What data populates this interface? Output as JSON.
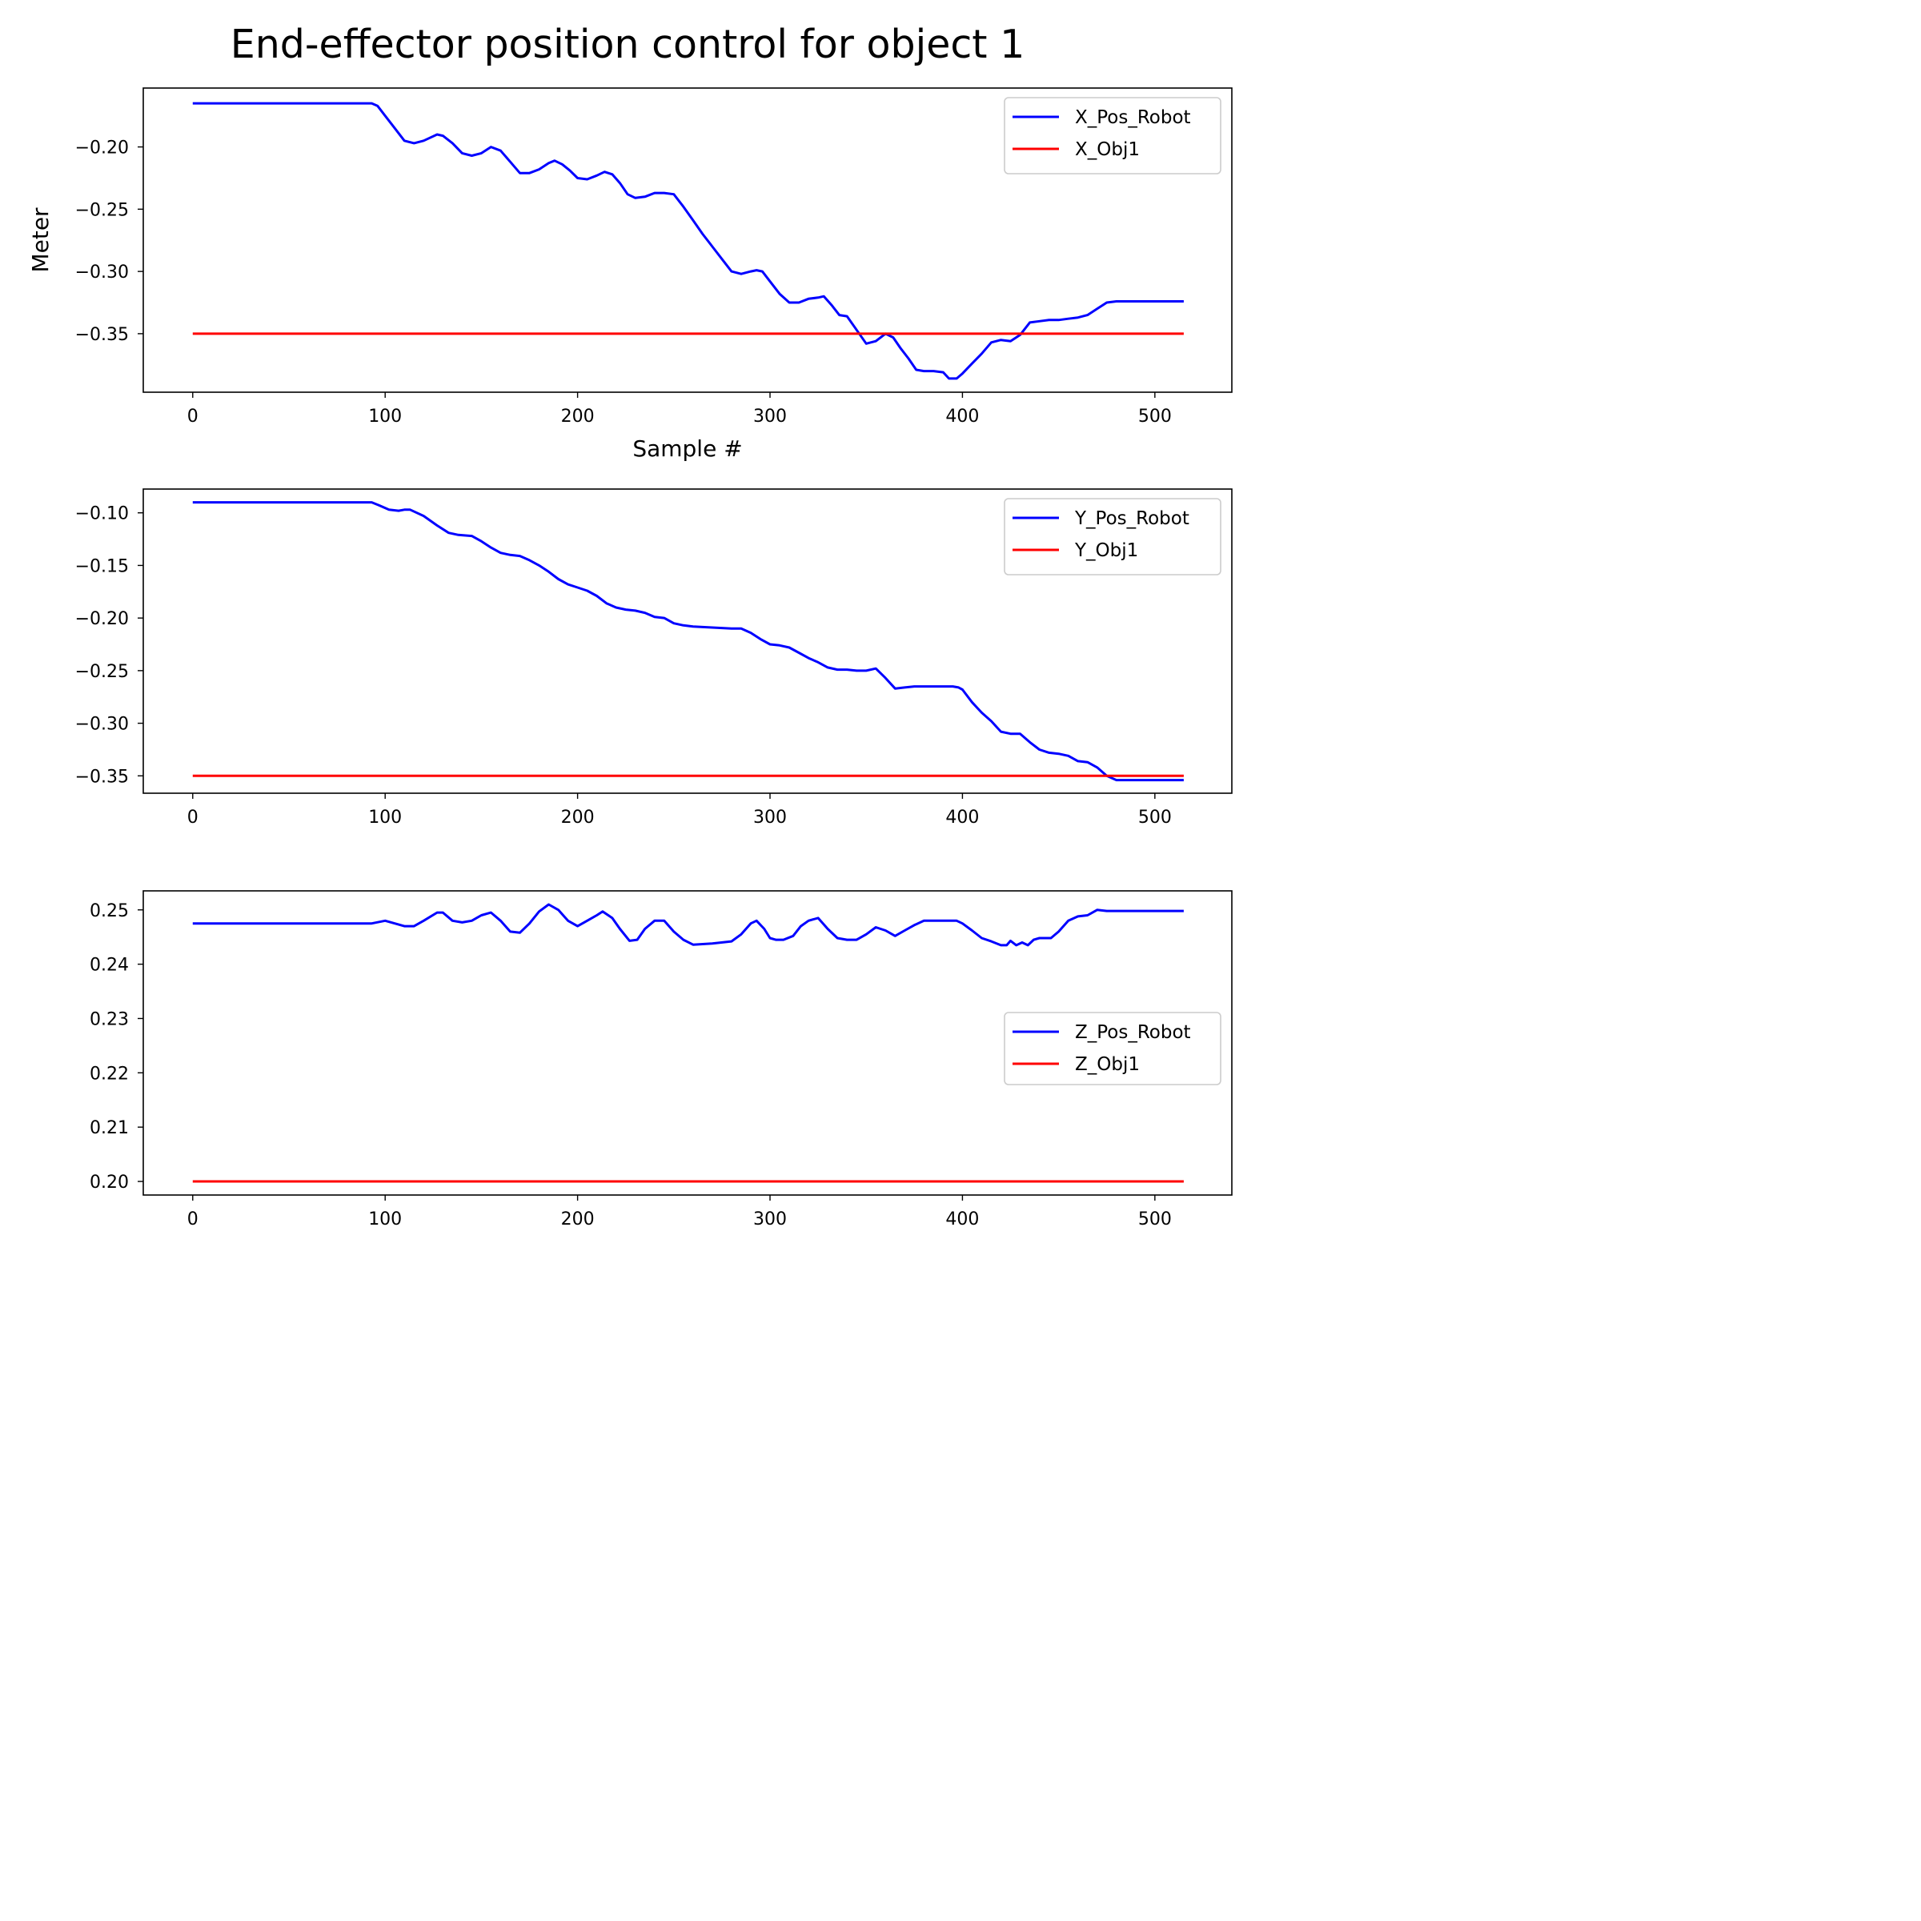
{
  "figure": {
    "title": "End-effector position control for object 1"
  },
  "colors": {
    "robot": "#0000ff",
    "object": "#ff0000",
    "axes": "#000000",
    "legend_border": "#cccccc",
    "background": "#ffffff"
  },
  "chart_data": [
    {
      "type": "line",
      "title": "",
      "xlabel": "Sample #",
      "ylabel": "Meter",
      "xlim": [
        -25.7,
        540
      ],
      "ylim": [
        -0.397,
        -0.1527
      ],
      "xticks": [
        0,
        100,
        200,
        300,
        400,
        500
      ],
      "yticks": [
        -0.2,
        -0.25,
        -0.3,
        -0.35
      ],
      "ytick_labels": [
        "−0.20",
        "−0.25",
        "−0.30",
        "−0.35"
      ],
      "xtick_labels": [
        "0",
        "100",
        "200",
        "300",
        "400",
        "500"
      ],
      "grid": false,
      "legend_position": "upper right",
      "series": [
        {
          "name": "X_Pos_Robot",
          "color": "#0000ff",
          "x": [
            0,
            20,
            40,
            60,
            80,
            93,
            96,
            100,
            105,
            110,
            115,
            120,
            127,
            130,
            135,
            140,
            145,
            150,
            155,
            160,
            165,
            170,
            175,
            180,
            185,
            188,
            192,
            196,
            200,
            205,
            210,
            214,
            218,
            222,
            226,
            230,
            235,
            240,
            245,
            250,
            255,
            260,
            265,
            270,
            275,
            280,
            285,
            290,
            293,
            296,
            300,
            305,
            310,
            315,
            320,
            325,
            328,
            332,
            336,
            340,
            345,
            350,
            355,
            360,
            364,
            368,
            372,
            376,
            380,
            385,
            390,
            393,
            397,
            400,
            405,
            410,
            415,
            420,
            425,
            430,
            435,
            440,
            445,
            450,
            455,
            460,
            465,
            470,
            475,
            480,
            490,
            500,
            515
          ],
          "y": [
            -0.165,
            -0.165,
            -0.165,
            -0.165,
            -0.165,
            -0.165,
            -0.167,
            -0.175,
            -0.185,
            -0.195,
            -0.197,
            -0.195,
            -0.19,
            -0.191,
            -0.197,
            -0.205,
            -0.207,
            -0.205,
            -0.2,
            -0.203,
            -0.212,
            -0.221,
            -0.221,
            -0.218,
            -0.213,
            -0.211,
            -0.214,
            -0.219,
            -0.225,
            -0.226,
            -0.223,
            -0.22,
            -0.222,
            -0.229,
            -0.238,
            -0.241,
            -0.24,
            -0.237,
            -0.237,
            -0.238,
            -0.248,
            -0.259,
            -0.27,
            -0.28,
            -0.29,
            -0.3,
            -0.302,
            -0.3,
            -0.299,
            -0.3,
            -0.308,
            -0.318,
            -0.325,
            -0.325,
            -0.322,
            -0.321,
            -0.32,
            -0.327,
            -0.335,
            -0.336,
            -0.347,
            -0.358,
            -0.356,
            -0.35,
            -0.353,
            -0.362,
            -0.37,
            -0.379,
            -0.38,
            -0.38,
            -0.381,
            -0.386,
            -0.386,
            -0.382,
            -0.374,
            -0.366,
            -0.357,
            -0.355,
            -0.356,
            -0.351,
            -0.341,
            -0.34,
            -0.339,
            -0.339,
            -0.338,
            -0.337,
            -0.335,
            -0.33,
            -0.325,
            -0.324,
            -0.324,
            -0.324,
            -0.324
          ]
        },
        {
          "name": "X_Obj1",
          "color": "#ff0000",
          "x": [
            0,
            515
          ],
          "y": [
            -0.35,
            -0.35
          ]
        }
      ]
    },
    {
      "type": "line",
      "title": "",
      "xlabel": "",
      "ylabel": "",
      "xlim": [
        -25.7,
        540
      ],
      "ylim": [
        -0.3665,
        -0.0774
      ],
      "xticks": [
        0,
        100,
        200,
        300,
        400,
        500
      ],
      "yticks": [
        -0.1,
        -0.15,
        -0.2,
        -0.25,
        -0.3,
        -0.35
      ],
      "ytick_labels": [
        "−0.10",
        "−0.15",
        "−0.20",
        "−0.25",
        "−0.30",
        "−0.35"
      ],
      "xtick_labels": [
        "0",
        "100",
        "200",
        "300",
        "400",
        "500"
      ],
      "grid": false,
      "legend_position": "upper right",
      "series": [
        {
          "name": "Y_Pos_Robot",
          "color": "#0000ff",
          "x": [
            0,
            50,
            93,
            97,
            102,
            107,
            110,
            113,
            120,
            127,
            133,
            138,
            145,
            150,
            155,
            160,
            165,
            170,
            175,
            180,
            185,
            190,
            195,
            200,
            205,
            210,
            215,
            220,
            225,
            230,
            235,
            240,
            245,
            250,
            255,
            260,
            270,
            280,
            285,
            290,
            295,
            300,
            305,
            310,
            315,
            320,
            325,
            330,
            335,
            340,
            345,
            350,
            355,
            360,
            365,
            370,
            375,
            380,
            390,
            395,
            398,
            400,
            405,
            410,
            415,
            420,
            425,
            430,
            435,
            440,
            445,
            450,
            455,
            460,
            465,
            470,
            475,
            480,
            490,
            500,
            515
          ],
          "y": [
            -0.09,
            -0.09,
            -0.09,
            -0.093,
            -0.097,
            -0.098,
            -0.097,
            -0.097,
            -0.103,
            -0.112,
            -0.119,
            -0.121,
            -0.122,
            -0.127,
            -0.133,
            -0.138,
            -0.14,
            -0.141,
            -0.145,
            -0.15,
            -0.156,
            -0.163,
            -0.168,
            -0.171,
            -0.174,
            -0.179,
            -0.186,
            -0.19,
            -0.192,
            -0.193,
            -0.195,
            -0.199,
            -0.2,
            -0.205,
            -0.207,
            -0.208,
            -0.209,
            -0.21,
            -0.21,
            -0.214,
            -0.22,
            -0.225,
            -0.226,
            -0.228,
            -0.233,
            -0.238,
            -0.242,
            -0.247,
            -0.249,
            -0.249,
            -0.25,
            -0.25,
            -0.248,
            -0.257,
            -0.267,
            -0.266,
            -0.265,
            -0.265,
            -0.265,
            -0.265,
            -0.266,
            -0.268,
            -0.28,
            -0.29,
            -0.298,
            -0.308,
            -0.31,
            -0.31,
            -0.318,
            -0.325,
            -0.328,
            -0.329,
            -0.331,
            -0.336,
            -0.337,
            -0.342,
            -0.35,
            -0.354,
            -0.354,
            -0.354,
            -0.354
          ]
        },
        {
          "name": "Y_Obj1",
          "color": "#ff0000",
          "x": [
            0,
            515
          ],
          "y": [
            -0.35,
            -0.35
          ]
        }
      ]
    },
    {
      "type": "line",
      "title": "",
      "xlabel": "",
      "ylabel": "",
      "xlim": [
        -25.7,
        540
      ],
      "ylim": [
        0.1975,
        0.2535
      ],
      "xticks": [
        0,
        100,
        200,
        300,
        400,
        500
      ],
      "yticks": [
        0.2,
        0.21,
        0.22,
        0.23,
        0.24,
        0.25
      ],
      "ytick_labels": [
        "0.20",
        "0.21",
        "0.22",
        "0.23",
        "0.24",
        "0.25"
      ],
      "xtick_labels": [
        "0",
        "100",
        "200",
        "300",
        "400",
        "500"
      ],
      "grid": false,
      "legend_position": "center right",
      "series": [
        {
          "name": "Z_Pos_Robot",
          "color": "#0000ff",
          "x": [
            0,
            50,
            93,
            100,
            110,
            115,
            120,
            127,
            130,
            135,
            140,
            145,
            150,
            155,
            160,
            165,
            170,
            175,
            180,
            185,
            190,
            195,
            200,
            205,
            210,
            213,
            218,
            222,
            227,
            231,
            235,
            240,
            245,
            250,
            255,
            260,
            270,
            280,
            285,
            290,
            293,
            297,
            300,
            303,
            307,
            312,
            316,
            320,
            325,
            330,
            335,
            340,
            345,
            350,
            355,
            360,
            365,
            370,
            375,
            380,
            390,
            397,
            400,
            405,
            410,
            415,
            420,
            423,
            425,
            428,
            431,
            434,
            437,
            440,
            446,
            450,
            455,
            460,
            465,
            470,
            475,
            480,
            500,
            515
          ],
          "y": [
            0.2475,
            0.2475,
            0.2475,
            0.248,
            0.247,
            0.247,
            0.248,
            0.2495,
            0.2495,
            0.248,
            0.2477,
            0.248,
            0.249,
            0.2495,
            0.248,
            0.246,
            0.2458,
            0.2475,
            0.2497,
            0.251,
            0.25,
            0.248,
            0.247,
            0.248,
            0.249,
            0.2497,
            0.2485,
            0.2465,
            0.2443,
            0.2445,
            0.2465,
            0.248,
            0.248,
            0.246,
            0.2445,
            0.2436,
            0.2438,
            0.2442,
            0.2455,
            0.2475,
            0.248,
            0.2465,
            0.2448,
            0.2445,
            0.2445,
            0.2452,
            0.247,
            0.248,
            0.2485,
            0.2465,
            0.2448,
            0.2445,
            0.2445,
            0.2455,
            0.2468,
            0.2462,
            0.2452,
            0.2462,
            0.2472,
            0.248,
            0.248,
            0.248,
            0.2475,
            0.2462,
            0.2448,
            0.2442,
            0.2435,
            0.2435,
            0.2443,
            0.2435,
            0.244,
            0.2435,
            0.2445,
            0.2448,
            0.2448,
            0.246,
            0.248,
            0.2488,
            0.249,
            0.25,
            0.2498,
            0.2498,
            0.2498,
            0.2498
          ]
        },
        {
          "name": "Z_Obj1",
          "color": "#ff0000",
          "x": [
            0,
            515
          ],
          "y": [
            0.2,
            0.2
          ]
        }
      ]
    }
  ]
}
